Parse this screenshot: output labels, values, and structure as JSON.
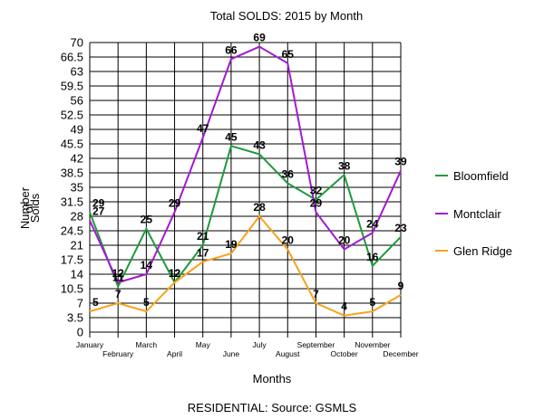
{
  "chart_data": {
    "type": "line",
    "title": "Total SOLDS: 2015 by Month",
    "xlabel": "Months",
    "ylabel_lines": [
      "Number",
      "of",
      "Solds"
    ],
    "source": "RESIDENTIAL: Source: GSMLS",
    "categories": [
      "January",
      "February",
      "March",
      "April",
      "May",
      "June",
      "July",
      "August",
      "September",
      "October",
      "November",
      "December"
    ],
    "yticks": [
      0,
      3.5,
      7,
      10.5,
      14,
      17.5,
      21,
      24.5,
      28,
      31.5,
      35,
      38.5,
      42,
      45.5,
      49,
      52.5,
      56,
      59.5,
      63,
      66.5,
      70
    ],
    "ylim": [
      0,
      70
    ],
    "grid": true,
    "legend_position": "right",
    "series": [
      {
        "name": "Bloomfield",
        "color": "#1e9b3c",
        "values": [
          29,
          11,
          25,
          12,
          21,
          45,
          43,
          36,
          32,
          38,
          16,
          23
        ]
      },
      {
        "name": "Montclair",
        "color": "#a31ad1",
        "values": [
          27,
          12,
          14,
          29,
          47,
          66,
          69,
          65,
          29,
          20,
          24,
          39
        ]
      },
      {
        "name": "Glen Ridge",
        "color": "#f7a21b",
        "values": [
          5,
          7,
          5,
          12,
          17,
          19,
          28,
          20,
          7,
          4,
          5,
          9
        ]
      }
    ]
  }
}
